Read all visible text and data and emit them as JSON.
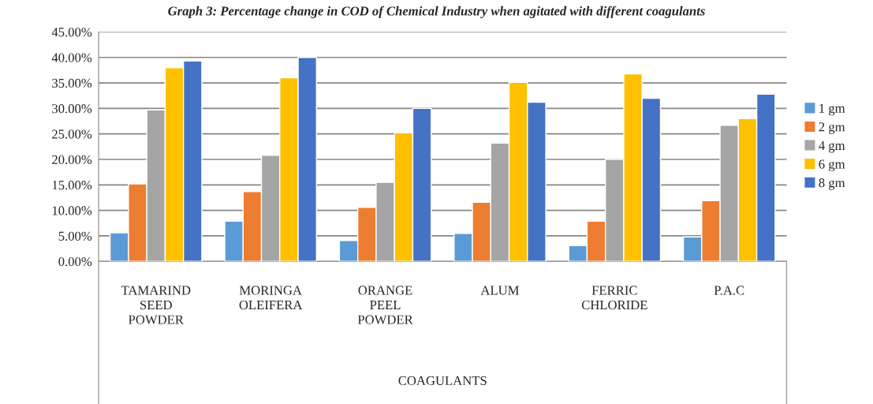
{
  "chart_data": {
    "type": "bar",
    "title": "Graph 3: Percentage change in COD of Chemical Industry when agitated with different coagulants",
    "xlabel": "COAGULANTS",
    "categories": [
      "TAMARIND\nSEED\nPOWDER",
      "MORINGA\nOLEIFERA",
      "ORANGE\nPEEL\nPOWDER",
      "ALUM",
      "FERRIC\nCHLORIDE",
      "P.A.C"
    ],
    "series": [
      {
        "name": "1 gm",
        "color": "#5b9bd5",
        "values": [
          5.6,
          7.9,
          4.1,
          5.5,
          3.1,
          4.8
        ]
      },
      {
        "name": "2 gm",
        "color": "#ed7d31",
        "values": [
          15.2,
          13.7,
          10.6,
          11.6,
          7.9,
          11.9
        ]
      },
      {
        "name": "4 gm",
        "color": "#a5a5a5",
        "values": [
          29.7,
          20.8,
          15.5,
          23.2,
          20.0,
          26.7
        ]
      },
      {
        "name": "6 gm",
        "color": "#ffc000",
        "values": [
          38.0,
          36.0,
          25.2,
          35.1,
          36.8,
          28.0
        ]
      },
      {
        "name": "8 gm",
        "color": "#4472c4",
        "values": [
          39.3,
          40.0,
          30.0,
          31.2,
          32.0,
          32.8
        ]
      }
    ],
    "ylim": [
      0,
      45
    ],
    "yticks": [
      {
        "value": 0,
        "label": "0.00%"
      },
      {
        "value": 5,
        "label": "5.00%"
      },
      {
        "value": 10,
        "label": "10.00%"
      },
      {
        "value": 15,
        "label": "15.00%"
      },
      {
        "value": 20,
        "label": "20.00%"
      },
      {
        "value": 25,
        "label": "25.00%"
      },
      {
        "value": 30,
        "label": "30.00%"
      },
      {
        "value": 35,
        "label": "35.00%"
      },
      {
        "value": 40,
        "label": "40.00%"
      },
      {
        "value": 45,
        "label": "45.00%"
      }
    ],
    "grid": "y",
    "legend": "right"
  }
}
